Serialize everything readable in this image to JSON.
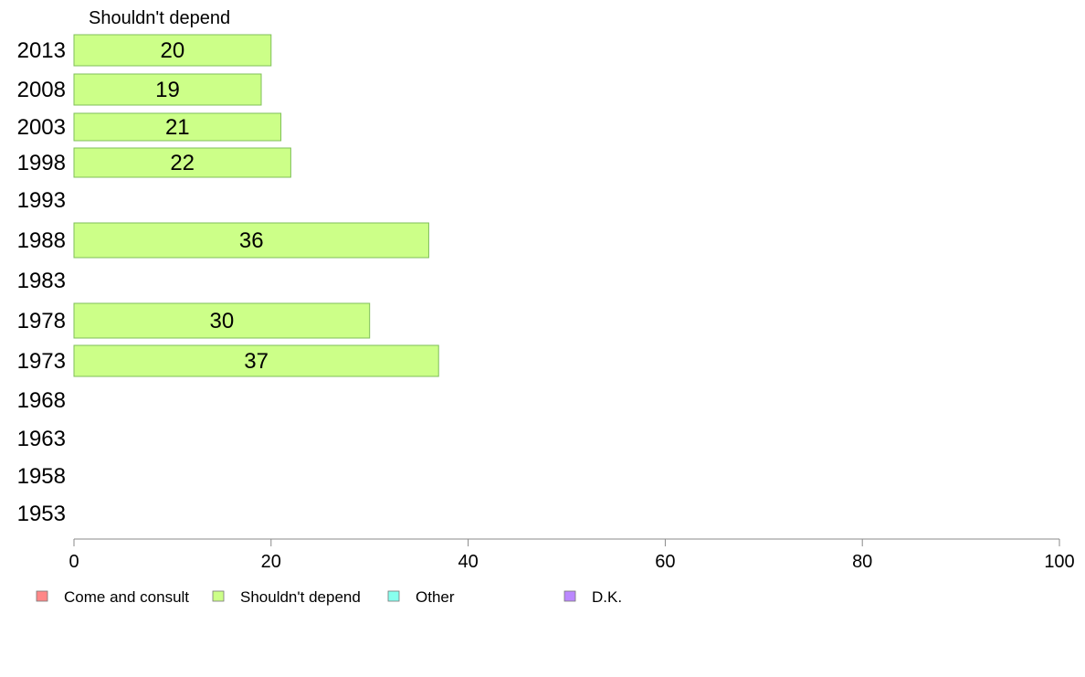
{
  "chart_data": {
    "type": "bar",
    "orientation": "horizontal",
    "title": "Shouldn't depend",
    "categories": [
      "2013",
      "2008",
      "2003",
      "1998",
      "1993",
      "1988",
      "1983",
      "1978",
      "1973",
      "1968",
      "1963",
      "1958",
      "1953"
    ],
    "series": [
      {
        "name": "Shouldn't depend",
        "color": "#ccff88",
        "values": [
          20,
          19,
          21,
          22,
          null,
          36,
          null,
          30,
          37,
          null,
          null,
          null,
          null
        ]
      }
    ],
    "xlim": [
      0,
      100
    ],
    "xticks": [
      "0",
      "20",
      "40",
      "60",
      "80",
      "100"
    ],
    "grid": false,
    "legend": {
      "placement": "bottom",
      "items": [
        {
          "label": "Come and consult",
          "color": "#ff8888"
        },
        {
          "label": "Shouldn't depend",
          "color": "#ccff88"
        },
        {
          "label": "Other",
          "color": "#88ffee"
        },
        {
          "label": "D.K.",
          "color": "#bb88ff"
        }
      ]
    }
  }
}
